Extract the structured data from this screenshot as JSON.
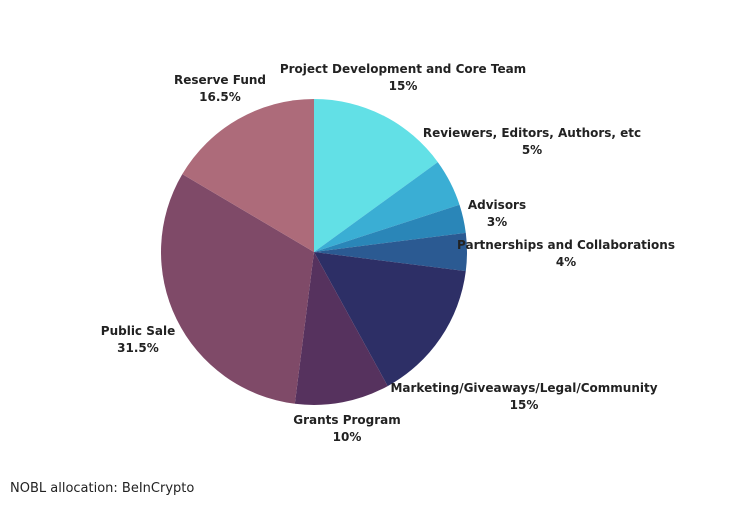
{
  "caption": "NOBL allocation: BeInCrypto",
  "chart_data": {
    "type": "pie",
    "title": "",
    "start": "12 o'clock",
    "direction": "clockwise",
    "legend": "none",
    "slices": [
      {
        "label": "Project Development and Core Team",
        "value": 15,
        "value_label": "15%",
        "color": "#62e0e6"
      },
      {
        "label": "Reviewers, Editors, Authors, etc",
        "value": 5,
        "value_label": "5%",
        "color": "#3aaed4"
      },
      {
        "label": "Advisors",
        "value": 3,
        "value_label": "3%",
        "color": "#2a86b8"
      },
      {
        "label": "Partnerships and Collaborations",
        "value": 4,
        "value_label": "4%",
        "color": "#2b5a92"
      },
      {
        "label": "Marketing/Giveaways/Legal/Community",
        "value": 15,
        "value_label": "15%",
        "color": "#2d2f66"
      },
      {
        "label": "Grants Program",
        "value": 10,
        "value_label": "10%",
        "color": "#56325e"
      },
      {
        "label": "Public Sale",
        "value": 31.5,
        "value_label": "31.5%",
        "color": "#7f4a68"
      },
      {
        "label": "Reserve Fund",
        "value": 16.5,
        "value_label": "16.5%",
        "color": "#ad6b7a"
      }
    ]
  }
}
